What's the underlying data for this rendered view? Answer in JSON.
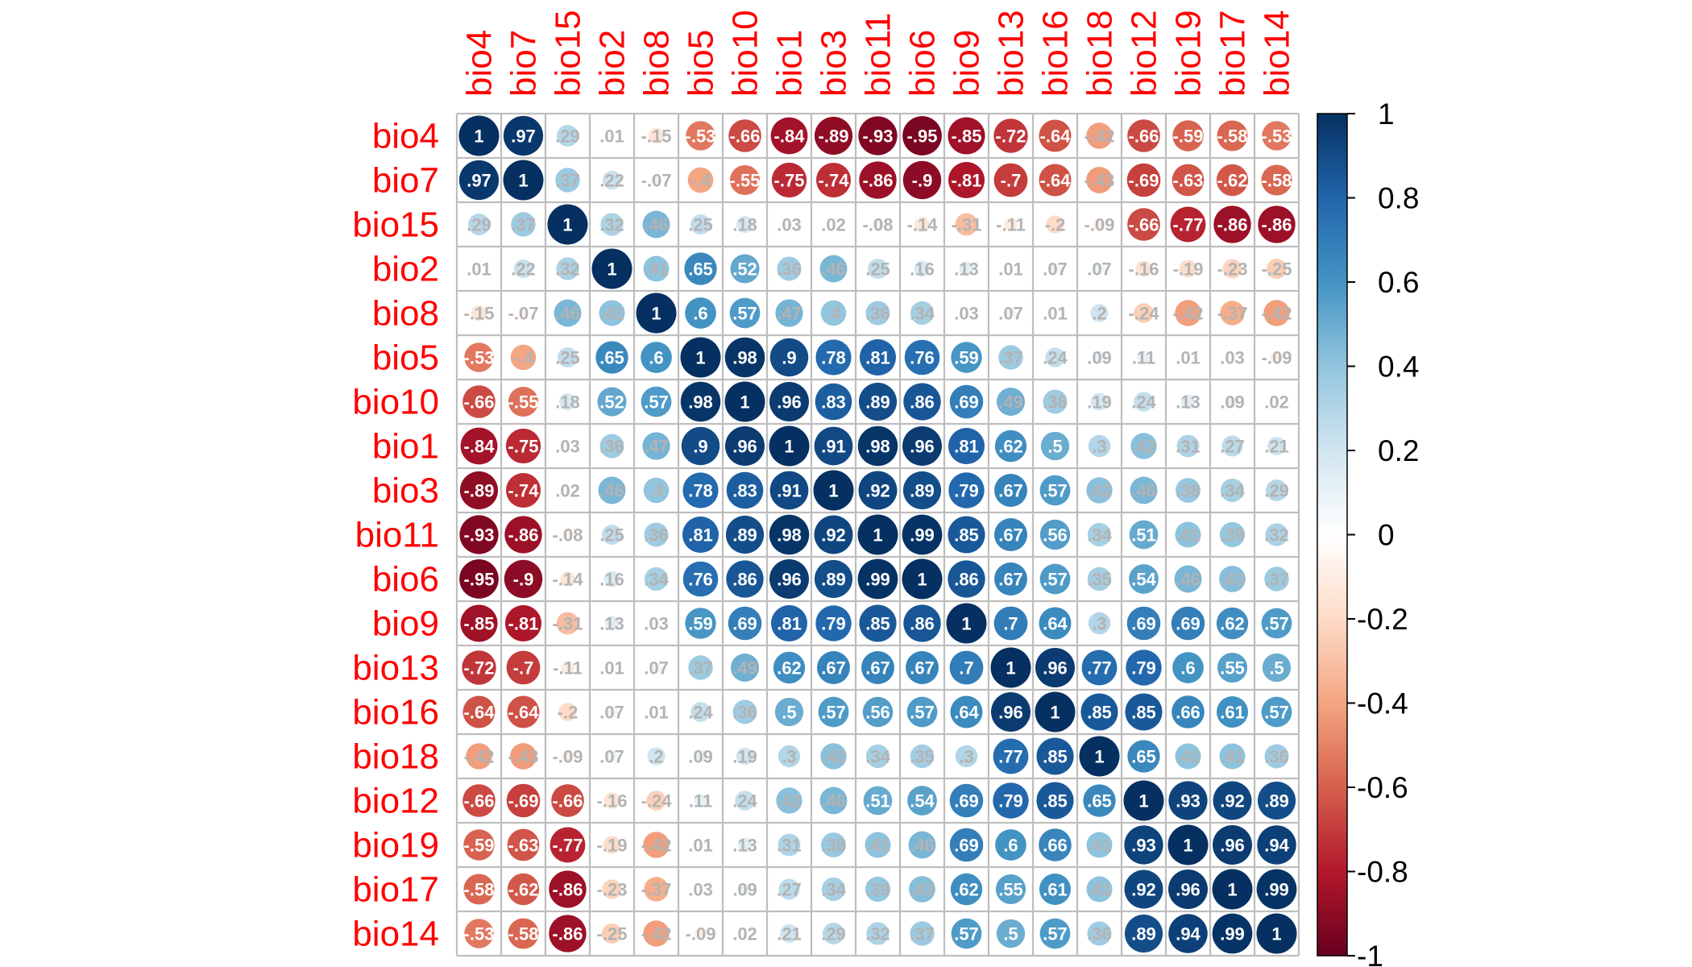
{
  "chart_data": {
    "type": "heatmap",
    "style": "correlation-matrix circles with coefficient labels",
    "title": "",
    "variables": [
      "bio4",
      "bio7",
      "bio15",
      "bio2",
      "bio8",
      "bio5",
      "bio10",
      "bio1",
      "bio3",
      "bio11",
      "bio6",
      "bio9",
      "bio13",
      "bio16",
      "bio18",
      "bio12",
      "bio19",
      "bio17",
      "bio14"
    ],
    "labels": [
      "bio4",
      "bio7",
      "bio15",
      "bio2",
      "bio8",
      "bio5",
      "bio10",
      "bio1",
      "bio3",
      "bio11",
      "bio6",
      "bio9",
      "bio13",
      "bio16",
      "bio18",
      "bio12",
      "bio19",
      "bio17",
      "bio14"
    ],
    "matrix": [
      [
        1,
        0.97,
        0.29,
        0.01,
        -0.15,
        -0.53,
        -0.66,
        -0.84,
        -0.89,
        -0.93,
        -0.95,
        -0.85,
        -0.72,
        -0.64,
        -0.42,
        -0.66,
        -0.59,
        -0.58,
        -0.53
      ],
      [
        0.97,
        1,
        0.37,
        0.22,
        -0.07,
        -0.4,
        -0.55,
        -0.75,
        -0.74,
        -0.86,
        -0.9,
        -0.81,
        -0.7,
        -0.64,
        -0.43,
        -0.69,
        -0.63,
        -0.62,
        -0.58
      ],
      [
        0.29,
        0.37,
        1,
        0.32,
        0.46,
        0.25,
        0.18,
        0.03,
        0.02,
        -0.08,
        -0.14,
        -0.31,
        -0.11,
        -0.2,
        -0.09,
        -0.66,
        -0.77,
        -0.86,
        -0.86
      ],
      [
        0.01,
        0.22,
        0.32,
        1,
        0.41,
        0.65,
        0.52,
        0.36,
        0.46,
        0.25,
        0.16,
        0.13,
        0.01,
        0.07,
        0.07,
        -0.16,
        -0.19,
        -0.23,
        -0.25
      ],
      [
        -0.15,
        -0.07,
        0.46,
        0.41,
        1,
        0.6,
        0.57,
        0.47,
        0.4,
        0.36,
        0.34,
        0.03,
        0.07,
        0.01,
        0.2,
        -0.24,
        -0.42,
        -0.37,
        -0.42
      ],
      [
        -0.53,
        -0.4,
        0.25,
        0.65,
        0.6,
        1,
        0.98,
        0.9,
        0.78,
        0.81,
        0.76,
        0.59,
        0.37,
        0.24,
        0.09,
        0.11,
        0.01,
        0.03,
        -0.09
      ],
      [
        -0.66,
        -0.55,
        0.18,
        0.52,
        0.57,
        0.98,
        1,
        0.96,
        0.83,
        0.89,
        0.86,
        0.69,
        0.49,
        0.36,
        0.19,
        0.24,
        0.13,
        0.09,
        0.02
      ],
      [
        -0.84,
        -0.75,
        0.03,
        0.36,
        0.47,
        0.9,
        0.96,
        1,
        0.91,
        0.98,
        0.96,
        0.81,
        0.62,
        0.5,
        0.3,
        0.42,
        0.31,
        0.27,
        0.21
      ],
      [
        -0.89,
        -0.74,
        0.02,
        0.46,
        0.4,
        0.78,
        0.83,
        0.91,
        1,
        0.92,
        0.89,
        0.79,
        0.67,
        0.57,
        0.42,
        0.46,
        0.38,
        0.34,
        0.29
      ],
      [
        -0.93,
        -0.86,
        -0.08,
        0.25,
        0.36,
        0.81,
        0.89,
        0.98,
        0.92,
        1,
        0.99,
        0.85,
        0.67,
        0.56,
        0.34,
        0.51,
        0.41,
        0.39,
        0.32
      ],
      [
        -0.95,
        -0.9,
        -0.14,
        0.16,
        0.34,
        0.76,
        0.86,
        0.96,
        0.89,
        0.99,
        1,
        0.86,
        0.67,
        0.57,
        0.35,
        0.54,
        0.46,
        0.43,
        0.37
      ],
      [
        -0.85,
        -0.81,
        -0.31,
        0.13,
        0.03,
        0.59,
        0.69,
        0.81,
        0.79,
        0.85,
        0.86,
        1,
        0.7,
        0.64,
        0.3,
        0.69,
        0.69,
        0.62,
        0.57
      ],
      [
        -0.72,
        -0.7,
        -0.11,
        0.01,
        0.07,
        0.37,
        0.49,
        0.62,
        0.67,
        0.67,
        0.67,
        0.7,
        1,
        0.96,
        0.77,
        0.79,
        0.6,
        0.55,
        0.5
      ],
      [
        -0.64,
        -0.64,
        -0.2,
        0.07,
        0.01,
        0.24,
        0.36,
        0.5,
        0.57,
        0.56,
        0.57,
        0.64,
        0.96,
        1,
        0.85,
        0.85,
        0.66,
        0.61,
        0.57
      ],
      [
        -0.42,
        -0.43,
        -0.09,
        0.07,
        0.2,
        0.09,
        0.19,
        0.3,
        0.42,
        0.34,
        0.35,
        0.3,
        0.77,
        0.85,
        1,
        0.65,
        0.41,
        0.41,
        0.36
      ],
      [
        -0.66,
        -0.69,
        -0.66,
        -0.16,
        -0.24,
        0.11,
        0.24,
        0.42,
        0.46,
        0.51,
        0.54,
        0.69,
        0.79,
        0.85,
        0.65,
        1,
        0.93,
        0.92,
        0.89
      ],
      [
        -0.59,
        -0.63,
        -0.77,
        -0.19,
        -0.42,
        0.01,
        0.13,
        0.31,
        0.38,
        0.41,
        0.46,
        0.69,
        0.6,
        0.66,
        0.41,
        0.93,
        1,
        0.96,
        0.94
      ],
      [
        -0.58,
        -0.62,
        -0.86,
        -0.23,
        -0.37,
        0.03,
        0.09,
        0.27,
        0.34,
        0.39,
        0.43,
        0.62,
        0.55,
        0.61,
        0.41,
        0.92,
        0.96,
        1,
        0.99
      ],
      [
        -0.53,
        -0.58,
        -0.86,
        -0.25,
        -0.42,
        -0.09,
        0.02,
        0.21,
        0.29,
        0.32,
        0.37,
        0.57,
        0.5,
        0.57,
        0.36,
        0.89,
        0.94,
        0.99,
        1
      ]
    ],
    "legend": {
      "position": "right",
      "range": [
        -1,
        1
      ],
      "ticks": [
        "1",
        "0.8",
        "0.6",
        "0.4",
        "0.2",
        "0",
        "-0.2",
        "-0.4",
        "-0.6",
        "-0.8",
        "-1"
      ],
      "tick_values": [
        1,
        0.8,
        0.6,
        0.4,
        0.2,
        0,
        -0.2,
        -0.4,
        -0.6,
        -0.8,
        -1
      ]
    },
    "colors": {
      "label_color": "#ff0000",
      "grid_color": "#bebebe",
      "coef_text_color": "#ffffff",
      "coef_text_color_light": "#b3b3b3",
      "palette": [
        "#67001f",
        "#b2182b",
        "#d6604d",
        "#f4a582",
        "#fddbc7",
        "#ffffff",
        "#d1e5f0",
        "#92c5de",
        "#4393c3",
        "#2166ac",
        "#053061"
      ]
    }
  }
}
